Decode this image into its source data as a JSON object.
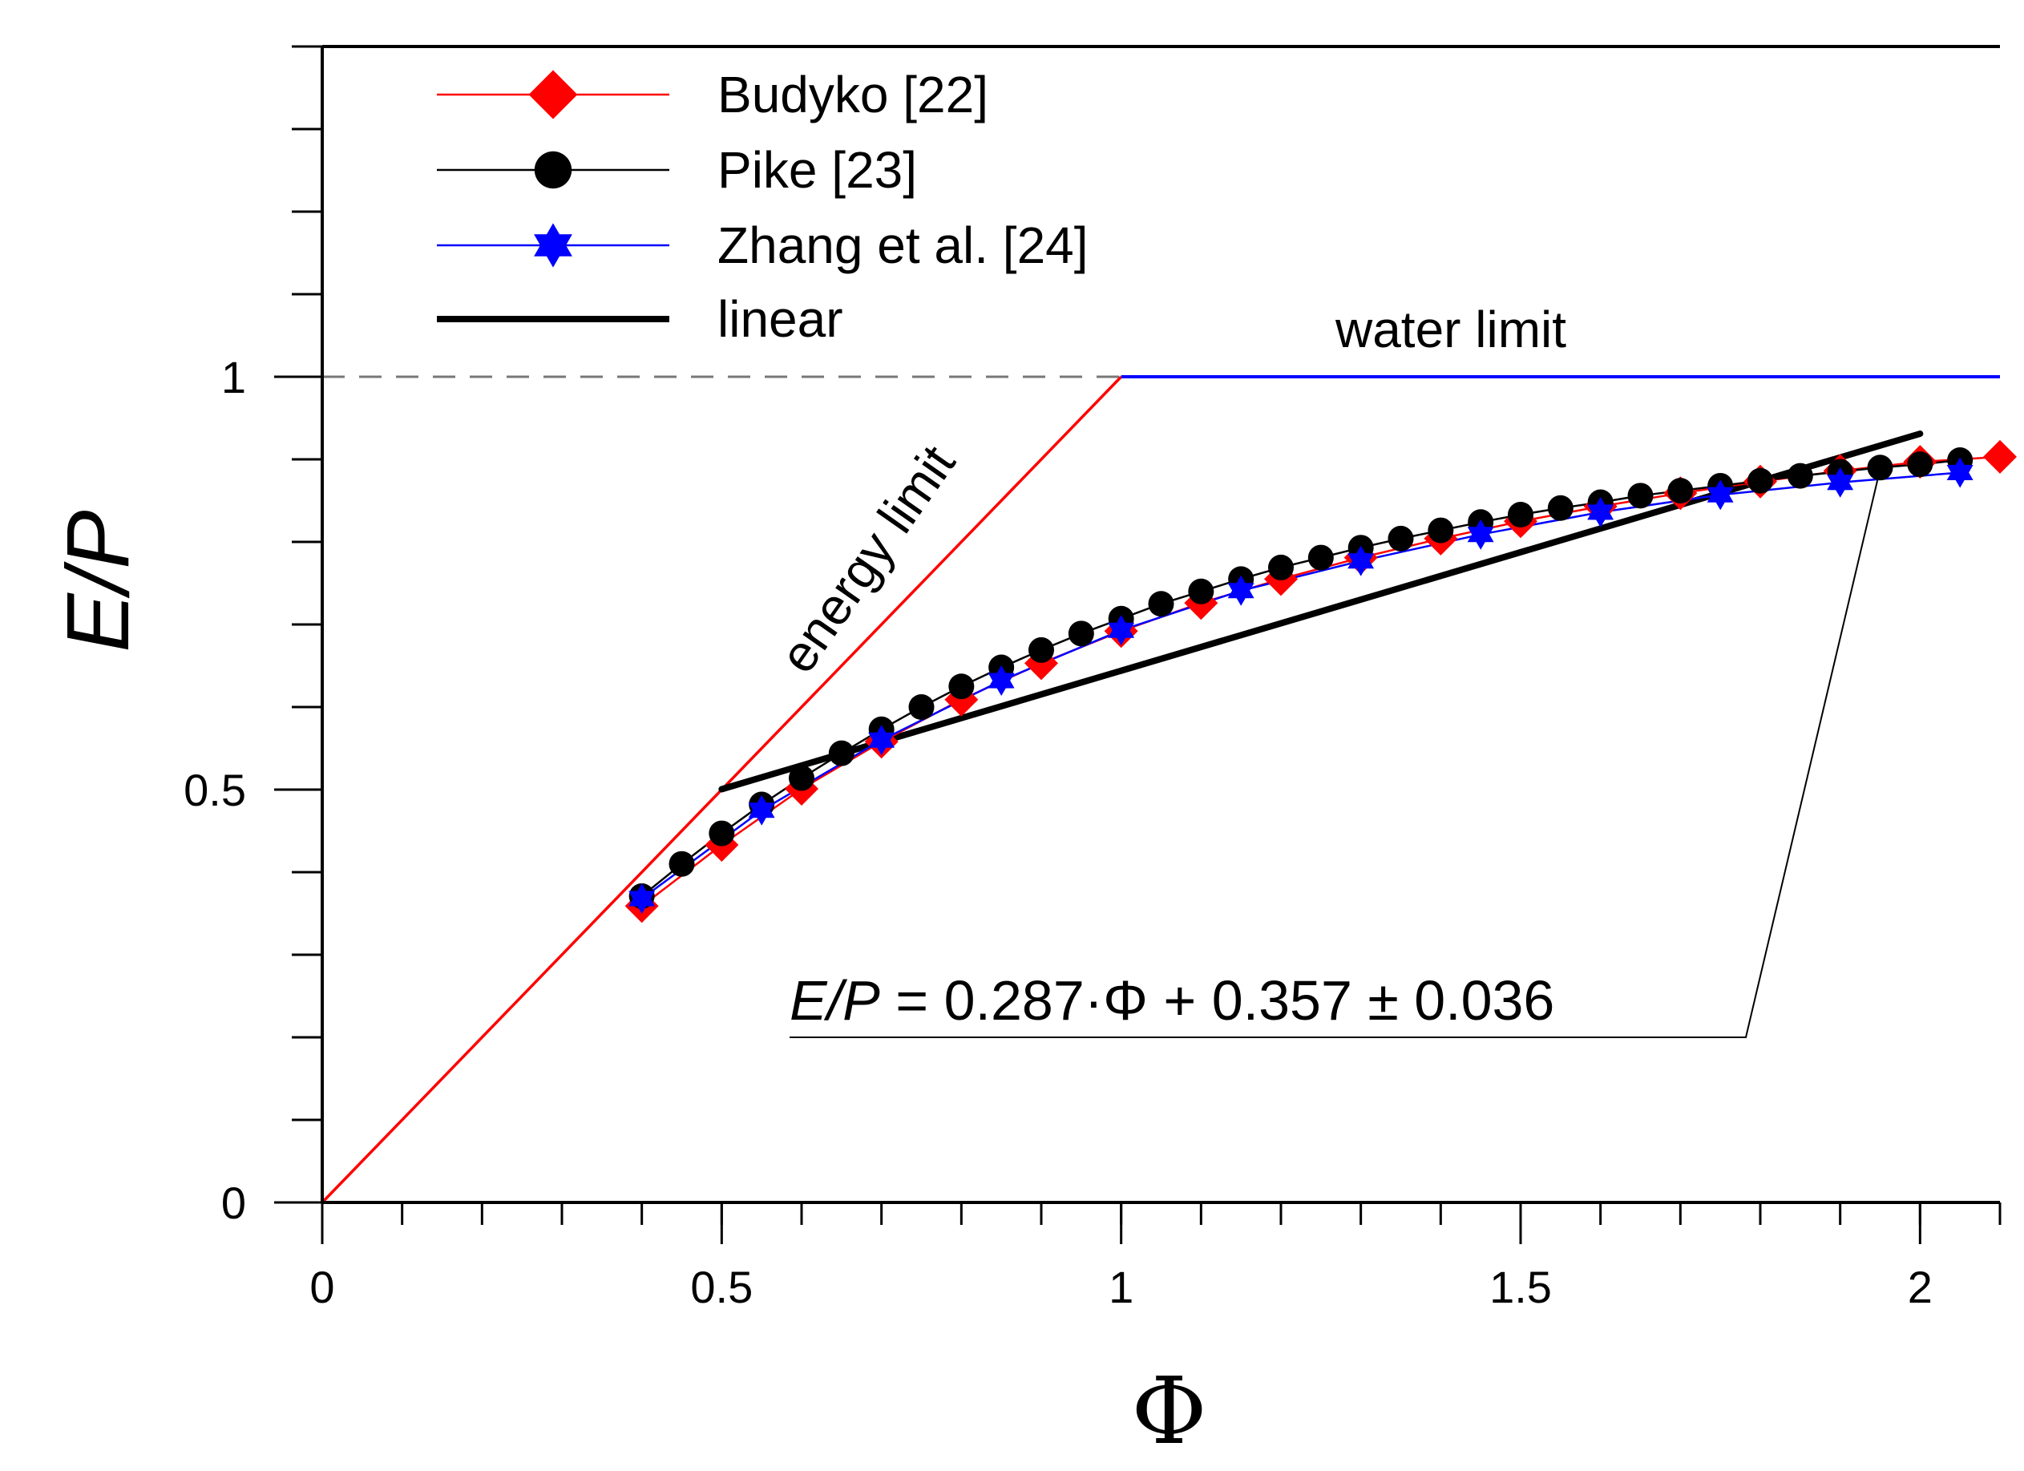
{
  "chart_data": {
    "type": "line",
    "title": "",
    "xlabel": "Φ",
    "ylabel": "E/P",
    "xlim": [
      0,
      2.1
    ],
    "ylim": [
      0,
      1.4
    ],
    "x_ticks": [
      {
        "value": 0,
        "label": "0"
      },
      {
        "value": 0.5,
        "label": "0.5"
      },
      {
        "value": 1,
        "label": "1"
      },
      {
        "value": 1.5,
        "label": "1.5"
      },
      {
        "value": 2,
        "label": "2"
      }
    ],
    "y_ticks": [
      {
        "value": 0,
        "label": "0"
      },
      {
        "value": 0.5,
        "label": "0.5"
      },
      {
        "value": 1,
        "label": "1"
      }
    ],
    "x_minor_step": 0.1,
    "y_minor_step": 0.1,
    "colors": {
      "budyko": "#ff0000",
      "pike": "#000000",
      "zhang": "#0000ff",
      "linear": "#000000",
      "energy_limit": "#ff0000",
      "water_limit": "#0000ff",
      "dashed": "#777777"
    },
    "series": [
      {
        "name": "Budyko [22]",
        "key": "budyko",
        "marker": "diamond",
        "x": [
          0.4,
          0.5,
          0.6,
          0.7,
          0.8,
          0.9,
          1.0,
          1.1,
          1.2,
          1.3,
          1.4,
          1.5,
          1.6,
          1.7,
          1.8,
          1.9,
          2.0,
          2.1
        ],
        "y": [
          0.359,
          0.433,
          0.501,
          0.558,
          0.609,
          0.653,
          0.692,
          0.726,
          0.755,
          0.781,
          0.804,
          0.825,
          0.843,
          0.859,
          0.873,
          0.886,
          0.897,
          0.903
        ]
      },
      {
        "name": "Pike [23]",
        "key": "pike",
        "marker": "circle",
        "x": [
          0.4,
          0.45,
          0.5,
          0.55,
          0.6,
          0.65,
          0.7,
          0.75,
          0.8,
          0.85,
          0.9,
          0.95,
          1.0,
          1.05,
          1.1,
          1.15,
          1.2,
          1.25,
          1.3,
          1.35,
          1.4,
          1.45,
          1.5,
          1.55,
          1.6,
          1.65,
          1.7,
          1.75,
          1.8,
          1.85,
          1.9,
          1.95,
          2.0,
          2.05
        ],
        "y": [
          0.371,
          0.41,
          0.447,
          0.482,
          0.514,
          0.544,
          0.573,
          0.6,
          0.625,
          0.648,
          0.669,
          0.689,
          0.707,
          0.725,
          0.74,
          0.755,
          0.769,
          0.781,
          0.793,
          0.804,
          0.814,
          0.824,
          0.833,
          0.841,
          0.848,
          0.856,
          0.862,
          0.868,
          0.874,
          0.88,
          0.885,
          0.89,
          0.894,
          0.899
        ]
      },
      {
        "name": "Zhang et al. [24]",
        "key": "zhang",
        "marker": "star",
        "x": [
          0.4,
          0.55,
          0.7,
          0.85,
          1.0,
          1.15,
          1.3,
          1.45,
          1.6,
          1.75,
          1.9,
          2.05
        ],
        "y": [
          0.368,
          0.475,
          0.56,
          0.632,
          0.693,
          0.741,
          0.777,
          0.809,
          0.836,
          0.857,
          0.872,
          0.884
        ]
      }
    ],
    "linear_fit": {
      "name": "linear",
      "slope": 0.287,
      "intercept": 0.357,
      "uncertainty": 0.036,
      "x_range": [
        0.5,
        2.0
      ]
    },
    "energy_limit": {
      "label": "energy limit",
      "x": [
        0,
        1
      ],
      "y": [
        0,
        1
      ]
    },
    "water_limit": {
      "label": "water limit",
      "x": [
        1,
        2.1
      ],
      "y": [
        1,
        1
      ]
    },
    "dashed_reference": {
      "x": [
        0,
        1
      ],
      "y": [
        1,
        1
      ]
    },
    "equation_parts": {
      "lhs": "E/P",
      "rhs": " = 0.287·Φ + 0.357 ± 0.036"
    },
    "equation_leader_target": {
      "x": 1.95,
      "y": 0.9
    },
    "legend": [
      {
        "label": "Budyko [22]",
        "key": "budyko"
      },
      {
        "label": "Pike [23]",
        "key": "pike"
      },
      {
        "label": "Zhang et al. [24]",
        "key": "zhang"
      },
      {
        "label": "linear",
        "key": "linear"
      }
    ],
    "legend_position": "top-left"
  }
}
